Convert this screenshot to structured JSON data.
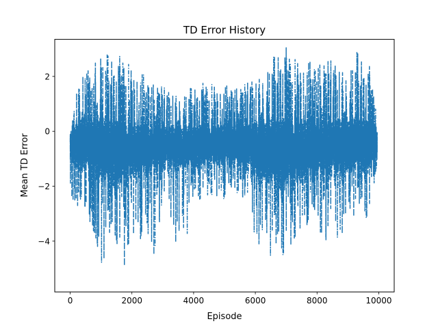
{
  "chart_data": {
    "type": "line",
    "title": "TD Error History",
    "xlabel": "Episode",
    "ylabel": "Mean TD Error",
    "xlim": [
      -500,
      10500
    ],
    "ylim": [
      -5.85,
      3.35
    ],
    "x_ticks": [
      0,
      2000,
      4000,
      6000,
      8000,
      10000
    ],
    "y_ticks": [
      -4,
      -2,
      0,
      2
    ],
    "grid": false,
    "legend": "none",
    "series": [
      {
        "color": "#1f77b4",
        "line_style": "dash-dot",
        "n_points": 10000,
        "x": [
          0,
          200,
          500,
          800,
          1000,
          1200,
          1500,
          1700,
          1800,
          2000,
          2300,
          2600,
          2900,
          3200,
          3600,
          4000,
          4500,
          5000,
          5500,
          6000,
          6300,
          6700,
          6900,
          7200,
          7500,
          8000,
          8400,
          8900,
          9300,
          9700,
          9950
        ],
        "upper": [
          0.5,
          1.6,
          2.3,
          2.6,
          2.9,
          2.8,
          2.7,
          2.85,
          2.8,
          2.5,
          2.2,
          1.8,
          1.7,
          1.5,
          1.5,
          1.6,
          1.9,
          1.7,
          1.6,
          2.0,
          2.5,
          2.8,
          3.2,
          2.9,
          2.7,
          2.5,
          2.6,
          2.5,
          2.9,
          2.4,
          0.7
        ],
        "lower": [
          -2.2,
          -2.9,
          -3.0,
          -3.8,
          -5.1,
          -4.4,
          -4.0,
          -5.5,
          -4.5,
          -3.8,
          -4.0,
          -5.2,
          -3.5,
          -3.0,
          -5.0,
          -2.6,
          -2.3,
          -2.5,
          -2.2,
          -4.0,
          -4.4,
          -4.9,
          -4.5,
          -4.1,
          -3.5,
          -3.4,
          -4.6,
          -3.6,
          -3.0,
          -3.2,
          -1.0
        ],
        "band_high": [
          0.1,
          0.6,
          0.9,
          1.0,
          1.0,
          1.0,
          0.9,
          0.9,
          0.9,
          0.8,
          0.7,
          0.6,
          0.6,
          0.6,
          0.5,
          0.5,
          0.6,
          0.6,
          0.7,
          0.8,
          0.9,
          1.0,
          1.0,
          1.0,
          1.0,
          0.9,
          0.9,
          0.9,
          0.9,
          0.8,
          0.6
        ],
        "band_low": [
          -1.2,
          -1.5,
          -1.7,
          -2.0,
          -2.2,
          -2.3,
          -2.3,
          -2.3,
          -2.2,
          -2.0,
          -1.9,
          -1.8,
          -1.7,
          -1.6,
          -1.6,
          -1.5,
          -1.5,
          -1.4,
          -1.6,
          -2.0,
          -2.2,
          -2.4,
          -2.4,
          -2.3,
          -2.2,
          -2.0,
          -2.0,
          -1.9,
          -1.7,
          -1.7,
          -1.4
        ]
      }
    ]
  }
}
